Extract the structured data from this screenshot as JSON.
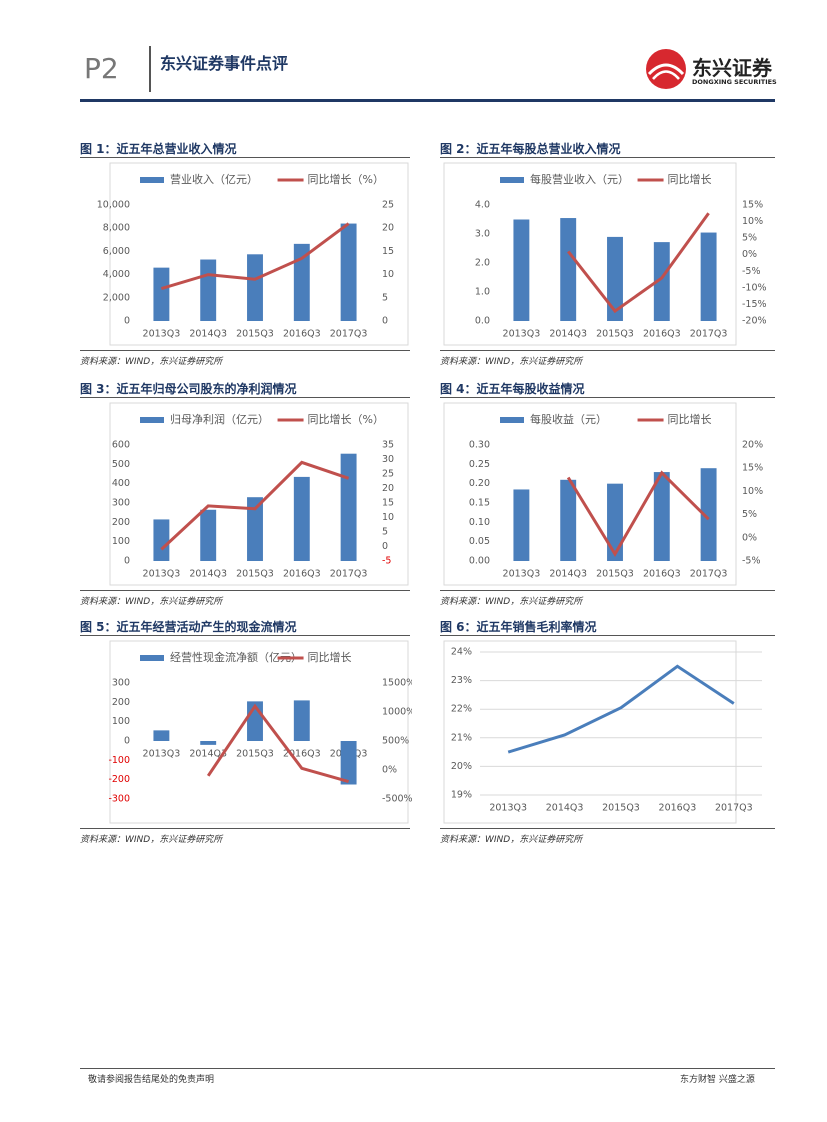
{
  "header": {
    "page": "P2",
    "title": "东兴证券事件点评",
    "logo_name": "东兴证券",
    "logo_en": "DONGXING SECURITIES"
  },
  "chart_data": [
    {
      "type": "combo",
      "title": "图 1：近五年总营业收入情况",
      "source": "资料来源：WIND，东兴证券研究所",
      "categories": [
        "2013Q3",
        "2014Q3",
        "2015Q3",
        "2016Q3",
        "2017Q3"
      ],
      "series": [
        {
          "name": "营业收入（亿元）",
          "type": "bar",
          "color": "#4a7ebb",
          "values": [
            4600,
            5300,
            5750,
            6650,
            8400
          ]
        },
        {
          "name": "同比增长（%）",
          "type": "line",
          "axis": "y2",
          "color": "#c0504d",
          "values": [
            7,
            10,
            9,
            13.5,
            21
          ]
        }
      ],
      "ylim": [
        0,
        10000
      ],
      "yticks": [
        0,
        {
          "value": 2000,
          "label": "2,000"
        },
        {
          "value": 4000,
          "label": "4,000"
        },
        {
          "value": 6000,
          "label": "6,000"
        },
        {
          "value": 8000,
          "label": "8,000"
        },
        {
          "value": 10000,
          "label": "10,000"
        }
      ],
      "y2lim": [
        0,
        25
      ],
      "y2ticks": [
        0,
        5,
        10,
        15,
        20,
        25
      ]
    },
    {
      "type": "combo",
      "title": "图 2：近五年每股总营业收入情况",
      "source": "资料来源：WIND，东兴证券研究所",
      "categories": [
        "2013Q3",
        "2014Q3",
        "2015Q3",
        "2016Q3",
        "2017Q3"
      ],
      "series": [
        {
          "name": "每股营业收入（元）",
          "type": "bar",
          "color": "#4a7ebb",
          "values": [
            3.5,
            3.55,
            2.9,
            2.72,
            3.05
          ]
        },
        {
          "name": "同比增长",
          "type": "line",
          "axis": "y2",
          "color": "#c0504d",
          "values": [
            null,
            1,
            -17,
            -7,
            12.5
          ]
        }
      ],
      "ylim": [
        0,
        4
      ],
      "yticks": [
        {
          "value": 0,
          "label": "0.0"
        },
        {
          "value": 1,
          "label": "1.0"
        },
        {
          "value": 2,
          "label": "2.0"
        },
        {
          "value": 3,
          "label": "3.0"
        },
        {
          "value": 4,
          "label": "4.0"
        }
      ],
      "y2lim": [
        -20,
        15
      ],
      "y2ticks": [
        {
          "value": -20,
          "label": "-20%"
        },
        {
          "value": -15,
          "label": "-15%"
        },
        {
          "value": -10,
          "label": "-10%"
        },
        {
          "value": -5,
          "label": "-5%"
        },
        {
          "value": 0,
          "label": "0%"
        },
        {
          "value": 5,
          "label": "5%"
        },
        {
          "value": 10,
          "label": "10%"
        },
        {
          "value": 15,
          "label": "15%"
        }
      ]
    },
    {
      "type": "combo",
      "title": "图 3：近五年归母公司股东的净利润情况",
      "source": "资料来源：WIND，东兴证券研究所",
      "categories": [
        "2013Q3",
        "2014Q3",
        "2015Q3",
        "2016Q3",
        "2017Q3"
      ],
      "series": [
        {
          "name": "归母净利润（亿元）",
          "type": "bar",
          "color": "#4a7ebb",
          "values": [
            215,
            265,
            330,
            435,
            555
          ]
        },
        {
          "name": "同比增长（%）",
          "type": "line",
          "axis": "y2",
          "color": "#c0504d",
          "values": [
            -1,
            14,
            13,
            29,
            23.5
          ]
        }
      ],
      "ylim": [
        0,
        600
      ],
      "yticks": [
        0,
        100,
        200,
        300,
        400,
        500,
        600
      ],
      "y2lim": [
        -5,
        35
      ],
      "y2ticks": [
        -5,
        0,
        5,
        10,
        15,
        20,
        25,
        30,
        35
      ],
      "negative_y2tick_color": "#e00000"
    },
    {
      "type": "combo",
      "title": "图 4：近五年每股收益情况",
      "source": "资料来源：WIND，东兴证券研究所",
      "categories": [
        "2013Q3",
        "2014Q3",
        "2015Q3",
        "2016Q3",
        "2017Q3"
      ],
      "series": [
        {
          "name": "每股收益（元）",
          "type": "bar",
          "color": "#4a7ebb",
          "values": [
            0.185,
            0.21,
            0.2,
            0.23,
            0.24
          ]
        },
        {
          "name": "同比增长",
          "type": "line",
          "axis": "y2",
          "color": "#c0504d",
          "values": [
            null,
            13,
            -3.5,
            14,
            4
          ]
        }
      ],
      "ylim": [
        0,
        0.3
      ],
      "yticks": [
        {
          "value": 0,
          "label": "0.00"
        },
        {
          "value": 0.05,
          "label": "0.05"
        },
        {
          "value": 0.1,
          "label": "0.10"
        },
        {
          "value": 0.15,
          "label": "0.15"
        },
        {
          "value": 0.2,
          "label": "0.20"
        },
        {
          "value": 0.25,
          "label": "0.25"
        },
        {
          "value": 0.3,
          "label": "0.30"
        }
      ],
      "y2lim": [
        -5,
        20
      ],
      "y2ticks": [
        {
          "value": -5,
          "label": "-5%"
        },
        {
          "value": 0,
          "label": "0%"
        },
        {
          "value": 5,
          "label": "5%"
        },
        {
          "value": 10,
          "label": "10%"
        },
        {
          "value": 15,
          "label": "15%"
        },
        {
          "value": 20,
          "label": "20%"
        }
      ]
    },
    {
      "type": "combo",
      "title": "图 5：近五年经营活动产生的现金流情况",
      "source": "资料来源：WIND，东兴证券研究所",
      "categories": [
        "2013Q3",
        "2014Q3",
        "2015Q3",
        "2016Q3",
        "2017Q3"
      ],
      "series": [
        {
          "name": "经营性现金流净额（亿元）",
          "type": "bar",
          "color": "#4a7ebb",
          "values": [
            55,
            -20,
            205,
            210,
            -225
          ]
        },
        {
          "name": "同比增长",
          "type": "line",
          "axis": "y2",
          "color": "#c0504d",
          "values": [
            null,
            -100,
            1100,
            30,
            -200
          ]
        }
      ],
      "ylim": [
        -300,
        300
      ],
      "yticks": [
        -300,
        -200,
        -100,
        0,
        100,
        200,
        300
      ],
      "negative_ytick_color": "#e00000",
      "y2lim": [
        -500,
        1500
      ],
      "y2ticks": [
        {
          "value": -500,
          "label": "-500%"
        },
        {
          "value": 0,
          "label": "0%"
        },
        {
          "value": 500,
          "label": "500%"
        },
        {
          "value": 1000,
          "label": "1000%"
        },
        {
          "value": 1500,
          "label": "1500%"
        }
      ]
    },
    {
      "type": "line",
      "title": "图 6：近五年销售毛利率情况",
      "source": "资料来源：WIND，东兴证券研究所",
      "categories": [
        "2013Q3",
        "2014Q3",
        "2015Q3",
        "2016Q3",
        "2017Q3"
      ],
      "values": [
        20.5,
        21.1,
        22.05,
        23.5,
        22.2
      ],
      "color": "#4a7ebb",
      "grid": true,
      "ylim": [
        19,
        24
      ],
      "yticks": [
        {
          "value": 19,
          "label": "19%"
        },
        {
          "value": 20,
          "label": "20%"
        },
        {
          "value": 21,
          "label": "21%"
        },
        {
          "value": 22,
          "label": "22%"
        },
        {
          "value": 23,
          "label": "23%"
        },
        {
          "value": 24,
          "label": "24%"
        }
      ]
    }
  ],
  "footer": {
    "disclaimer": "敬请参阅报告结尾处的免责声明",
    "slogan": "东方财智 兴盛之源"
  }
}
